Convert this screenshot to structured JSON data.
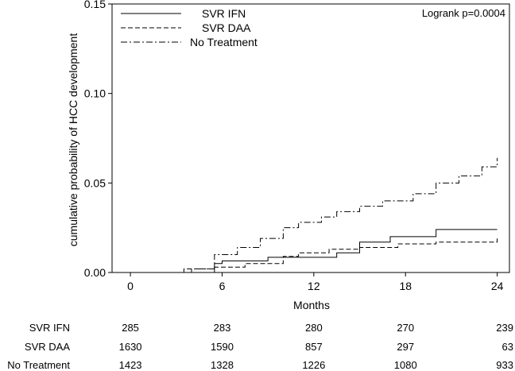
{
  "chart_data": {
    "type": "line",
    "xlabel": "Months",
    "ylabel": "cumulative probability of HCC development",
    "xlim": [
      -1.2,
      24.8
    ],
    "ylim": [
      0,
      0.15
    ],
    "x_ticks": [
      0,
      6,
      12,
      18,
      24
    ],
    "x_tick_labels": [
      "0",
      "6",
      "12",
      "18",
      "24"
    ],
    "y_ticks": [
      0,
      0.05,
      0.1,
      0.15
    ],
    "y_tick_labels": [
      "0.00",
      "0.05",
      "0.10",
      "0.15"
    ],
    "grid": false,
    "legend_position": "top-left",
    "annotation": "Logrank p=0.0004",
    "series": [
      {
        "name": "SVR IFN",
        "dash": "solid",
        "x": [
          5.5,
          5.5,
          6.0,
          9.0,
          13.5,
          15.0,
          17.0,
          20.0,
          24.0
        ],
        "y": [
          0.0,
          0.005,
          0.0065,
          0.0085,
          0.011,
          0.017,
          0.02,
          0.024,
          0.024
        ]
      },
      {
        "name": "SVR DAA",
        "dash": "dashed",
        "x": [
          3.0,
          3.5,
          5.5,
          7.5,
          10.0,
          11.0,
          13.0,
          15.0,
          17.5,
          20.0,
          24.0
        ],
        "y": [
          0.0,
          0.002,
          0.003,
          0.005,
          0.009,
          0.011,
          0.013,
          0.014,
          0.016,
          0.017,
          0.019
        ]
      },
      {
        "name": "No Treatment",
        "dash": "dashdot",
        "x": [
          3.0,
          4.0,
          5.5,
          7.0,
          8.5,
          10.0,
          11.0,
          12.5,
          13.5,
          15.0,
          16.5,
          18.5,
          20.0,
          21.5,
          23.0,
          24.0
        ],
        "y": [
          0.0,
          0.002,
          0.01,
          0.014,
          0.019,
          0.025,
          0.028,
          0.031,
          0.034,
          0.037,
          0.04,
          0.044,
          0.05,
          0.054,
          0.059,
          0.064
        ]
      }
    ],
    "risk_table": {
      "times": [
        0,
        6,
        12,
        18,
        24
      ],
      "rows": [
        {
          "label": "SVR IFN",
          "values": [
            "285",
            "283",
            "280",
            "270",
            "239"
          ]
        },
        {
          "label": "SVR DAA",
          "values": [
            "1630",
            "1590",
            "857",
            "297",
            "63"
          ]
        },
        {
          "label": "No Treatment",
          "values": [
            "1423",
            "1328",
            "1226",
            "1080",
            "933"
          ]
        }
      ]
    }
  }
}
